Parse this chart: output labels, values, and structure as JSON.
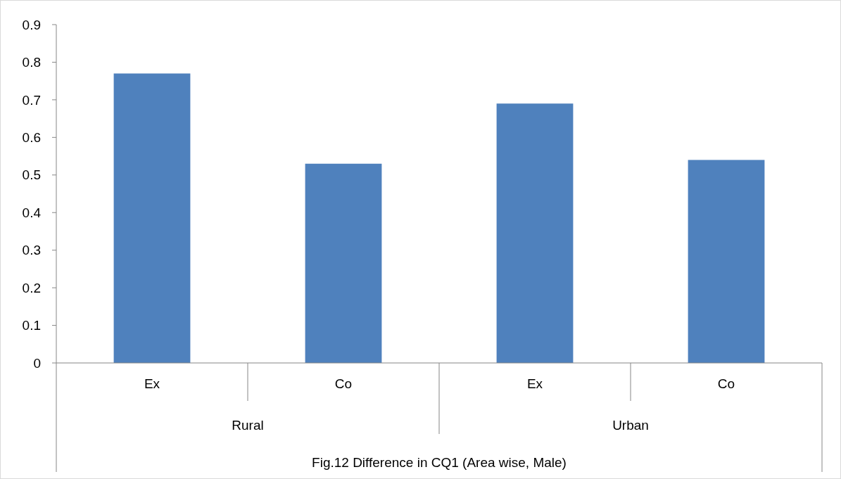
{
  "chart_data": {
    "type": "bar",
    "title": "Fig.12 Difference in CQ1 (Area wise, Male)",
    "categories": [
      "Ex",
      "Co",
      "Ex",
      "Co"
    ],
    "values": [
      0.77,
      0.53,
      0.69,
      0.54
    ],
    "color": "#4f81bd",
    "ylim": [
      0,
      0.9
    ],
    "yticks": [
      0,
      0.1,
      0.2,
      0.3,
      0.4,
      0.5,
      0.6,
      0.7,
      0.8,
      0.9
    ],
    "grid": false,
    "annotations": [
      "Rural",
      "Urban"
    ]
  }
}
